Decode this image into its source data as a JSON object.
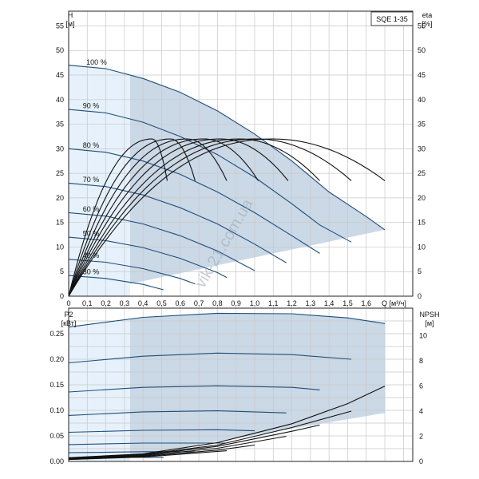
{
  "chart_data": [
    {
      "type": "line",
      "title": "SQE 1-35",
      "ylabel": "H",
      "ylabel_unit": "[м]",
      "y2label": "eta",
      "y2label_unit": "[%]",
      "xlabel": "Q [м³/ч]",
      "xlim": [
        0,
        1.85
      ],
      "ylim": [
        0,
        58
      ],
      "y2lim": [
        0,
        58
      ],
      "x_ticks": [
        0,
        0.1,
        0.2,
        0.3,
        0.4,
        0.5,
        0.6,
        0.7,
        0.8,
        0.9,
        1.0,
        1.1,
        1.2,
        1.3,
        1.4,
        1.5,
        1.6
      ],
      "x_tick_labels": [
        "0",
        "0,1",
        "0,2",
        "0,3",
        "0,4",
        "0,5",
        "0,6",
        "0,7",
        "0,8",
        "0,9",
        "1,0",
        "1,1",
        "1,2",
        "1,3",
        "1,4",
        "1,5",
        "1,6"
      ],
      "y_ticks": [
        0,
        5,
        10,
        15,
        20,
        25,
        30,
        35,
        40,
        45,
        50,
        55
      ],
      "grid": true,
      "speed_labels": [
        "100 %",
        "90 %",
        "80 %",
        "70 %",
        "60 %",
        "50 %",
        "40 %",
        "30 %"
      ],
      "head_curves": [
        {
          "speed": 100,
          "points": [
            [
              0,
              47
            ],
            [
              0.2,
              46.3
            ],
            [
              0.4,
              44.3
            ],
            [
              0.6,
              41.5
            ],
            [
              0.8,
              37.7
            ],
            [
              1.0,
              33.0
            ],
            [
              1.2,
              27.5
            ],
            [
              1.4,
              21.2
            ],
            [
              1.6,
              16.2
            ],
            [
              1.7,
              13.5
            ]
          ]
        },
        {
          "speed": 90,
          "points": [
            [
              0,
              38
            ],
            [
              0.2,
              37.3
            ],
            [
              0.4,
              35.4
            ],
            [
              0.6,
              32.5
            ],
            [
              0.8,
              28.8
            ],
            [
              1.0,
              24.2
            ],
            [
              1.2,
              18.8
            ],
            [
              1.35,
              14.5
            ],
            [
              1.52,
              11.0
            ]
          ]
        },
        {
          "speed": 80,
          "points": [
            [
              0,
              30
            ],
            [
              0.2,
              29.3
            ],
            [
              0.4,
              27.5
            ],
            [
              0.6,
              24.8
            ],
            [
              0.8,
              21.2
            ],
            [
              1.0,
              17.0
            ],
            [
              1.2,
              12.3
            ],
            [
              1.35,
              8.7
            ]
          ]
        },
        {
          "speed": 70,
          "points": [
            [
              0,
              23
            ],
            [
              0.2,
              22.3
            ],
            [
              0.4,
              20.6
            ],
            [
              0.6,
              18.0
            ],
            [
              0.8,
              14.7
            ],
            [
              1.0,
              10.6
            ],
            [
              1.17,
              6.8
            ]
          ]
        },
        {
          "speed": 60,
          "points": [
            [
              0,
              17
            ],
            [
              0.2,
              16.3
            ],
            [
              0.4,
              14.7
            ],
            [
              0.6,
              12.3
            ],
            [
              0.8,
              9.2
            ],
            [
              1.0,
              5.2
            ]
          ]
        },
        {
          "speed": 50,
          "points": [
            [
              0,
              12
            ],
            [
              0.2,
              11.3
            ],
            [
              0.4,
              9.9
            ],
            [
              0.6,
              7.7
            ],
            [
              0.8,
              4.8
            ],
            [
              0.85,
              3.8
            ]
          ]
        },
        {
          "speed": 40,
          "points": [
            [
              0,
              7.5
            ],
            [
              0.2,
              6.9
            ],
            [
              0.4,
              5.6
            ],
            [
              0.6,
              3.6
            ],
            [
              0.68,
              2.5
            ]
          ]
        },
        {
          "speed": 30,
          "points": [
            [
              0,
              4.2
            ],
            [
              0.2,
              3.6
            ],
            [
              0.4,
              2.4
            ],
            [
              0.51,
              1.3
            ]
          ]
        }
      ],
      "efficiency_curves": [
        {
          "q_peak": 0.45,
          "q_end": 0.53,
          "eta_max": 32,
          "eta_end": 23.5
        },
        {
          "q_peak": 0.55,
          "q_end": 0.68,
          "eta_max": 32,
          "eta_end": 23.5
        },
        {
          "q_peak": 0.64,
          "q_end": 0.85,
          "eta_max": 32,
          "eta_end": 23.5
        },
        {
          "q_peak": 0.73,
          "q_end": 1.02,
          "eta_max": 32,
          "eta_end": 23.5
        },
        {
          "q_peak": 0.82,
          "q_end": 1.18,
          "eta_max": 32,
          "eta_end": 23.5
        },
        {
          "q_peak": 0.92,
          "q_end": 1.35,
          "eta_max": 32,
          "eta_end": 23.5
        },
        {
          "q_peak": 1.01,
          "q_end": 1.52,
          "eta_max": 32,
          "eta_end": 23.5
        },
        {
          "q_peak": 1.1,
          "q_end": 1.7,
          "eta_max": 32,
          "eta_end": 23.5
        }
      ],
      "operating_region": {
        "q_min": 0.33,
        "q_max": 1.7,
        "head_bottom_start": 2.5,
        "head_bottom_end": 13.5
      }
    },
    {
      "type": "line",
      "ylabel": "P2",
      "ylabel_unit": "[кВт]",
      "y2label": "NPSH",
      "y2label_unit": "[м]",
      "xlim": [
        0,
        1.85
      ],
      "ylim": [
        0,
        0.3
      ],
      "y2lim": [
        0,
        12.2
      ],
      "y_ticks": [
        0,
        0.05,
        0.1,
        0.15,
        0.2,
        0.25
      ],
      "y_tick_labels": [
        "0.00",
        "0.05",
        "0.10",
        "0.15",
        "0.20",
        "0.25"
      ],
      "y2_ticks": [
        0,
        2,
        4,
        6,
        8,
        10
      ],
      "grid": true,
      "power_curves": [
        {
          "speed": 100,
          "points": [
            [
              0,
              0.263
            ],
            [
              0.4,
              0.282
            ],
            [
              0.8,
              0.29
            ],
            [
              1.2,
              0.289
            ],
            [
              1.5,
              0.281
            ],
            [
              1.7,
              0.27
            ]
          ]
        },
        {
          "speed": 90,
          "points": [
            [
              0,
              0.193
            ],
            [
              0.4,
              0.206
            ],
            [
              0.8,
              0.212
            ],
            [
              1.2,
              0.209
            ],
            [
              1.52,
              0.2
            ]
          ]
        },
        {
          "speed": 80,
          "points": [
            [
              0,
              0.136
            ],
            [
              0.4,
              0.145
            ],
            [
              0.8,
              0.148
            ],
            [
              1.2,
              0.145
            ],
            [
              1.35,
              0.14
            ]
          ]
        },
        {
          "speed": 70,
          "points": [
            [
              0,
              0.09
            ],
            [
              0.4,
              0.097
            ],
            [
              0.8,
              0.099
            ],
            [
              1.17,
              0.095
            ]
          ]
        },
        {
          "speed": 60,
          "points": [
            [
              0,
              0.057
            ],
            [
              0.4,
              0.061
            ],
            [
              0.8,
              0.062
            ],
            [
              1.0,
              0.06
            ]
          ]
        },
        {
          "speed": 50,
          "points": [
            [
              0,
              0.033
            ],
            [
              0.4,
              0.036
            ],
            [
              0.85,
              0.036
            ]
          ]
        },
        {
          "speed": 40,
          "points": [
            [
              0,
              0.017
            ],
            [
              0.4,
              0.019
            ],
            [
              0.68,
              0.019
            ]
          ]
        },
        {
          "speed": 30,
          "points": [
            [
              0,
              0.007
            ],
            [
              0.3,
              0.008
            ],
            [
              0.51,
              0.008
            ]
          ]
        }
      ],
      "npsh_curves": [
        {
          "points": [
            [
              0,
              0.3
            ],
            [
              0.4,
              0.6
            ],
            [
              0.8,
              1.5
            ],
            [
              1.2,
              3.0
            ],
            [
              1.5,
              4.6
            ],
            [
              1.7,
              6.0
            ]
          ]
        },
        {
          "points": [
            [
              0,
              0.25
            ],
            [
              0.4,
              0.55
            ],
            [
              0.8,
              1.3
            ],
            [
              1.2,
              2.7
            ],
            [
              1.52,
              4.0
            ]
          ]
        },
        {
          "points": [
            [
              0,
              0.2
            ],
            [
              0.4,
              0.5
            ],
            [
              0.8,
              1.2
            ],
            [
              1.2,
              2.4
            ],
            [
              1.35,
              2.9
            ]
          ]
        },
        {
          "points": [
            [
              0,
              0.2
            ],
            [
              0.4,
              0.45
            ],
            [
              0.8,
              1.05
            ],
            [
              1.17,
              2.0
            ]
          ]
        },
        {
          "points": [
            [
              0,
              0.15
            ],
            [
              0.4,
              0.4
            ],
            [
              0.8,
              0.9
            ],
            [
              1.0,
              1.3
            ]
          ]
        },
        {
          "points": [
            [
              0,
              0.15
            ],
            [
              0.4,
              0.35
            ],
            [
              0.85,
              0.85
            ]
          ]
        }
      ],
      "operating_region": {
        "q_min": 0.33,
        "q_max": 1.7,
        "p_bottom_start": 0.01,
        "p_bottom_end": 0.095
      }
    }
  ],
  "watermark": "vik-21.com.ua"
}
